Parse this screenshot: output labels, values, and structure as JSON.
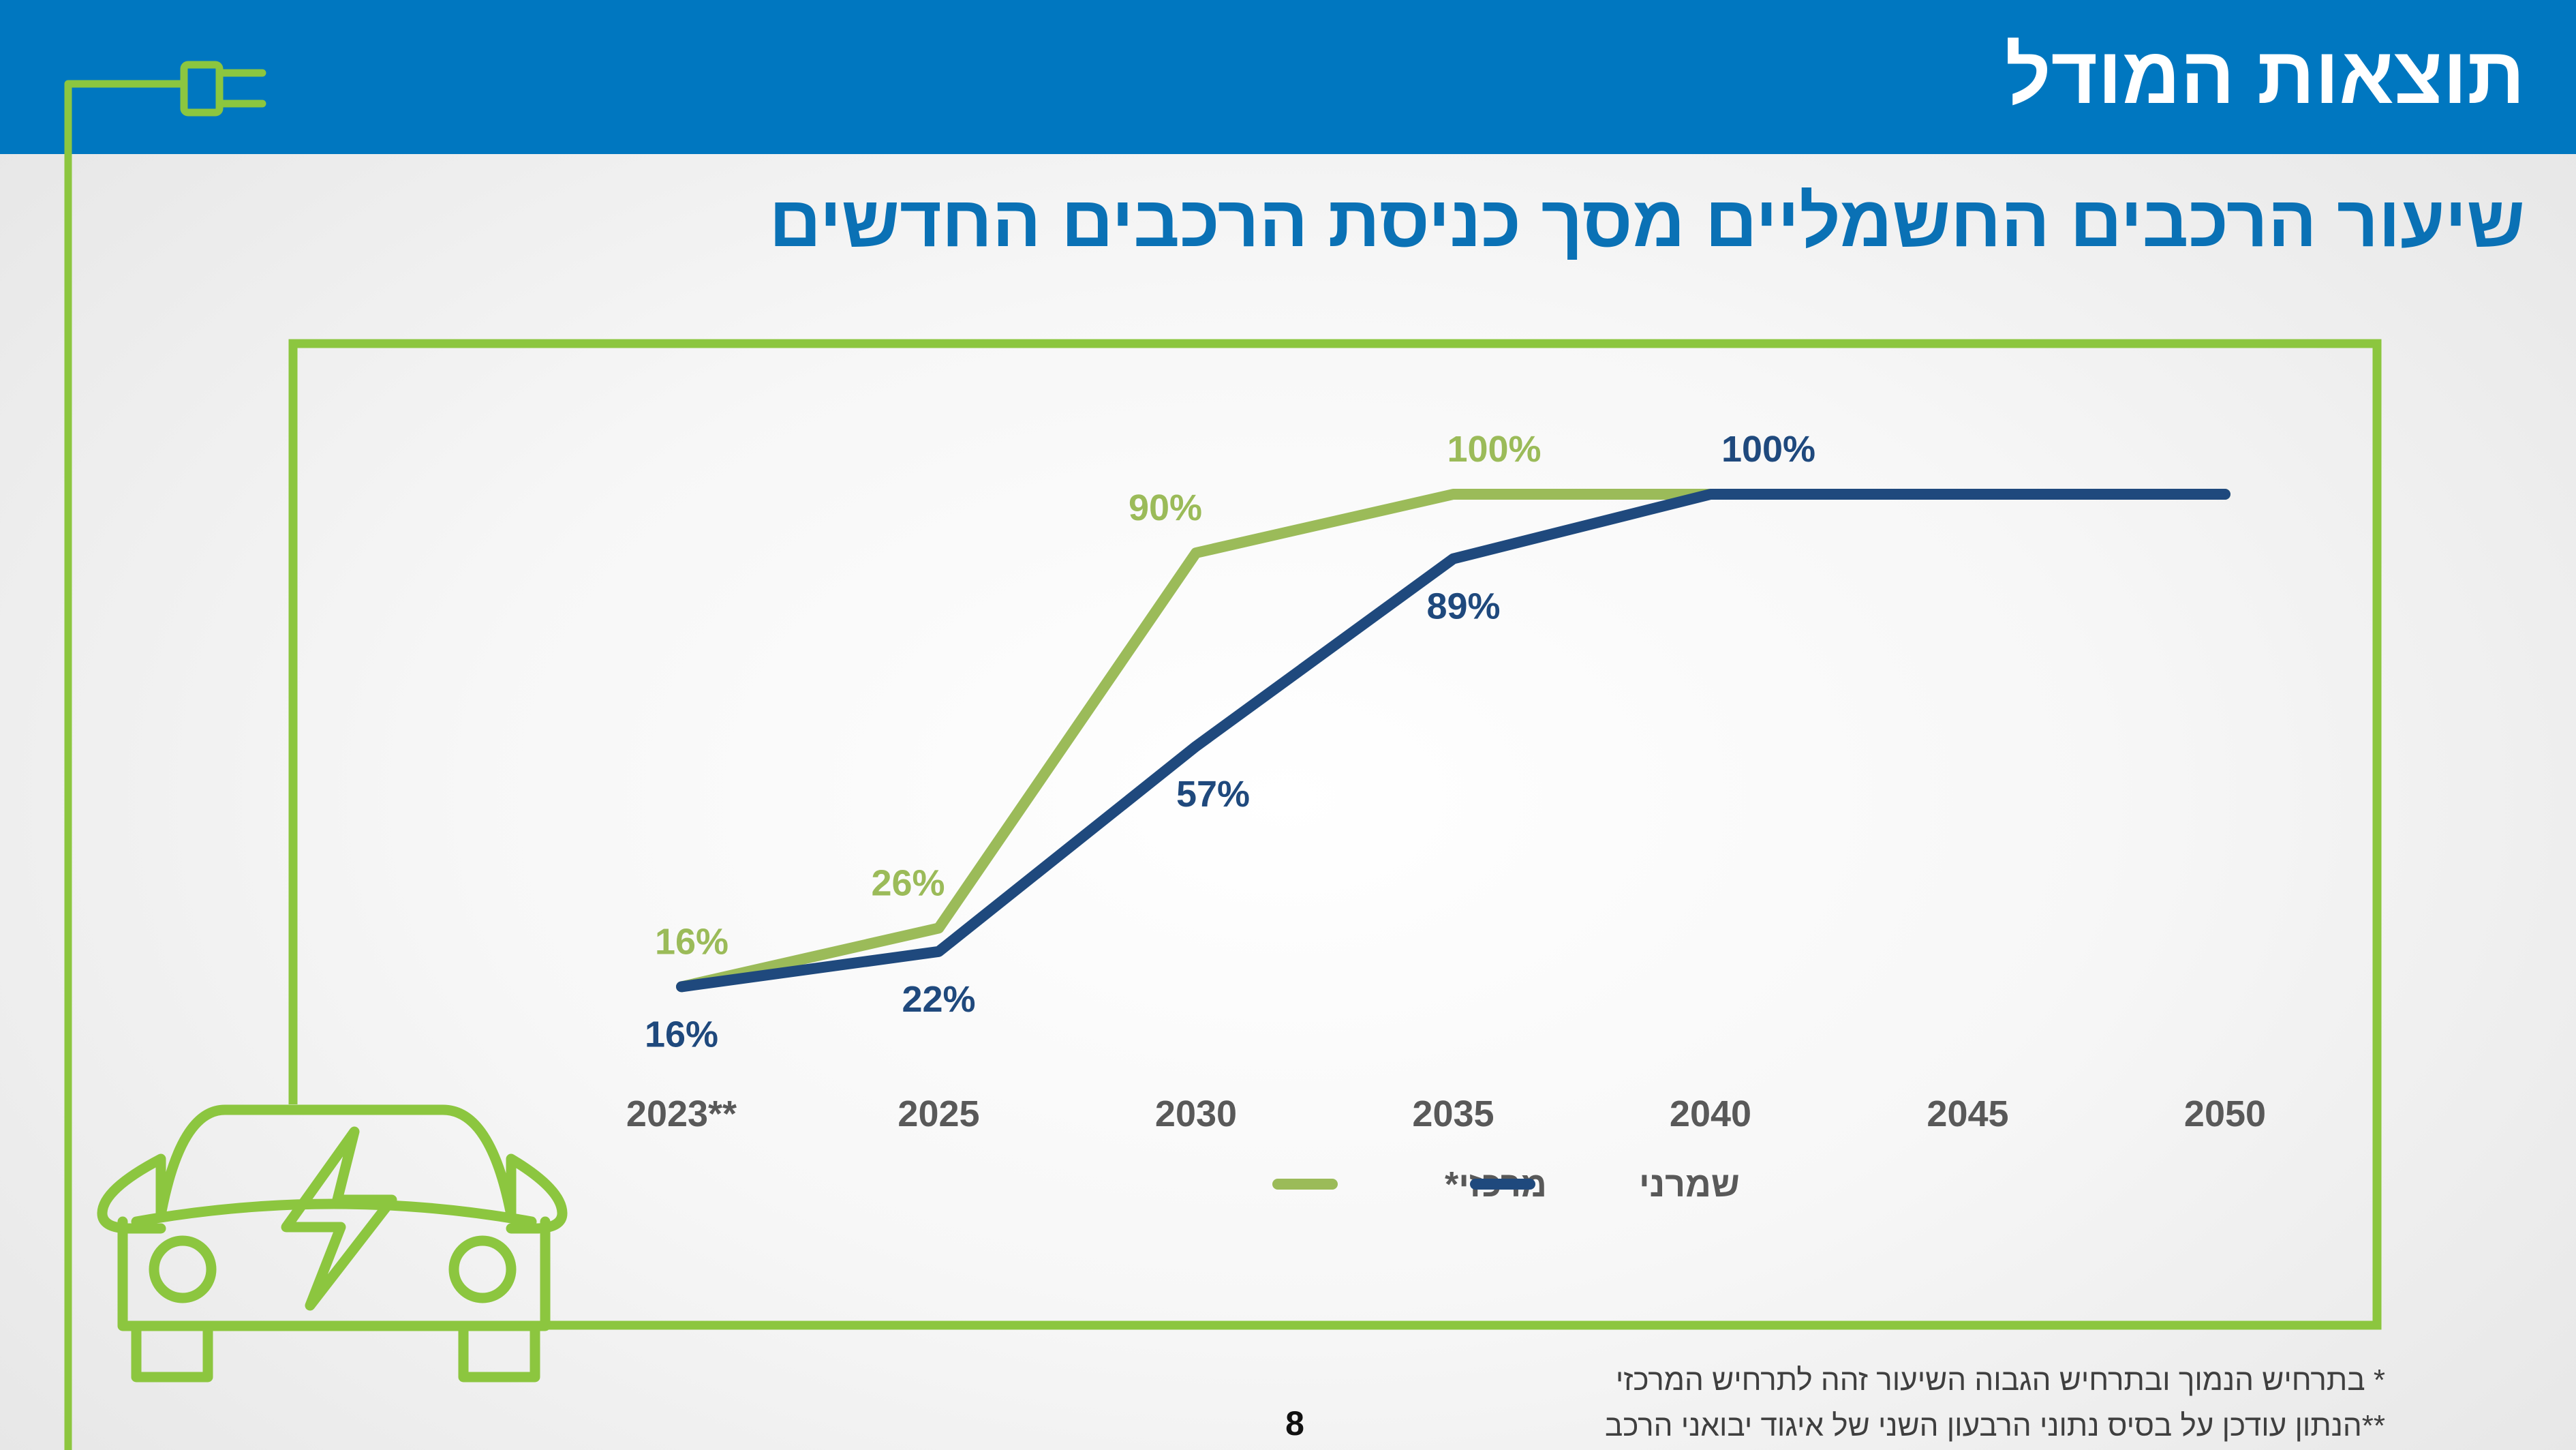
{
  "header": {
    "title": "תוצאות המודל"
  },
  "subtitle": "שיעור הרכבים החשמליים מסך כניסת הרכבים החדשים",
  "colors": {
    "header_bg": "#0077c0",
    "subtitle": "#0a71b5",
    "frame_green": "#8cc63f",
    "series_central": "#9bbb59",
    "series_conservative": "#1f497d",
    "axis_text": "#595959"
  },
  "icons": [
    "plug-icon",
    "electric-car-icon"
  ],
  "chart_data": {
    "type": "line",
    "categories": [
      "**2023",
      "2025",
      "2030",
      "2035",
      "2040",
      "2045",
      "2050"
    ],
    "ylim": [
      0,
      100
    ],
    "grid": false,
    "legend": "bottom",
    "series": [
      {
        "name": "מרכזי*",
        "color": "#9bbb59",
        "values": [
          16,
          26,
          90,
          100,
          100,
          100,
          100
        ],
        "labels": [
          "16%",
          "26%",
          "90%",
          "100%",
          "",
          "",
          ""
        ]
      },
      {
        "name": "שמרני",
        "color": "#1f497d",
        "values": [
          16,
          22,
          57,
          89,
          100,
          100,
          100
        ],
        "labels": [
          "16%",
          "22%",
          "57%",
          "89%",
          "100%",
          "",
          ""
        ]
      }
    ]
  },
  "footnotes": [
    "* בתרחיש הנמוך ובתרחיש הגבוה השיעור זהה לתרחיש המרכזי",
    "**הנתון עודכן על בסיס נתוני הרבעון השני של איגוד יבואני הרכב"
  ],
  "page_number": "8"
}
